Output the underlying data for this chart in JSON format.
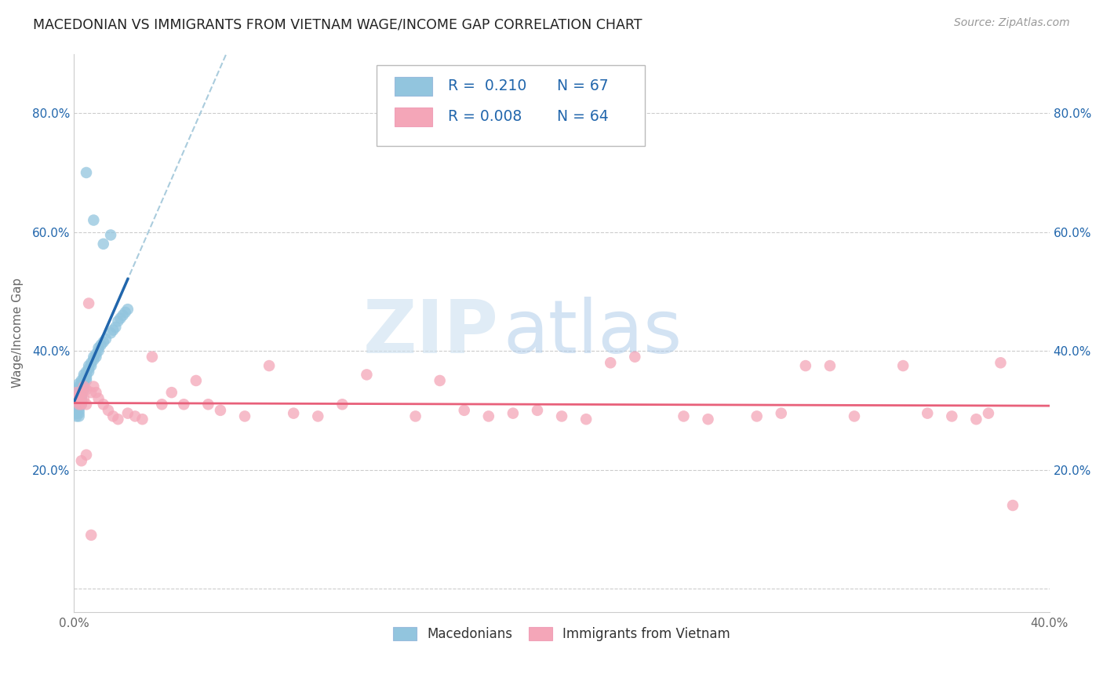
{
  "title": "MACEDONIAN VS IMMIGRANTS FROM VIETNAM WAGE/INCOME GAP CORRELATION CHART",
  "source": "Source: ZipAtlas.com",
  "ylabel": "Wage/Income Gap",
  "xlim": [
    0.0,
    0.4
  ],
  "ylim": [
    -0.04,
    0.9
  ],
  "xticks": [
    0.0,
    0.1,
    0.2,
    0.3,
    0.4
  ],
  "xtick_labels": [
    "0.0%",
    "",
    "",
    "",
    "40.0%"
  ],
  "yticks": [
    0.0,
    0.2,
    0.4,
    0.6,
    0.8
  ],
  "ytick_labels_left": [
    "",
    "20.0%",
    "40.0%",
    "60.0%",
    "80.0%"
  ],
  "ytick_labels_right": [
    "",
    "20.0%",
    "40.0%",
    "60.0%",
    "80.0%"
  ],
  "blue_color": "#92c5de",
  "pink_color": "#f4a6b8",
  "blue_line_color": "#2166ac",
  "pink_line_color": "#e8607a",
  "watermark_zip": "ZIP",
  "watermark_atlas": "atlas",
  "legend_r1": "R =  0.210",
  "legend_n1": "N = 67",
  "legend_r2": "R = 0.008",
  "legend_n2": "N = 64",
  "blue_label": "Macedonians",
  "pink_label": "Immigrants from Vietnam",
  "grid_color": "#cccccc",
  "mac_x": [
    0.001,
    0.001,
    0.001,
    0.001,
    0.001,
    0.001,
    0.001,
    0.001,
    0.001,
    0.001,
    0.002,
    0.002,
    0.002,
    0.002,
    0.002,
    0.002,
    0.002,
    0.002,
    0.002,
    0.002,
    0.002,
    0.002,
    0.003,
    0.003,
    0.003,
    0.003,
    0.003,
    0.003,
    0.003,
    0.003,
    0.003,
    0.004,
    0.004,
    0.004,
    0.004,
    0.004,
    0.004,
    0.005,
    0.005,
    0.005,
    0.005,
    0.006,
    0.006,
    0.006,
    0.007,
    0.007,
    0.008,
    0.008,
    0.009,
    0.009,
    0.01,
    0.01,
    0.011,
    0.012,
    0.013,
    0.015,
    0.016,
    0.017,
    0.018,
    0.019,
    0.02,
    0.021,
    0.022,
    0.015,
    0.012,
    0.008,
    0.005
  ],
  "mac_y": [
    0.335,
    0.325,
    0.32,
    0.315,
    0.31,
    0.305,
    0.3,
    0.295,
    0.295,
    0.29,
    0.345,
    0.34,
    0.335,
    0.33,
    0.325,
    0.32,
    0.315,
    0.31,
    0.305,
    0.3,
    0.295,
    0.29,
    0.35,
    0.345,
    0.34,
    0.335,
    0.33,
    0.325,
    0.32,
    0.315,
    0.31,
    0.36,
    0.355,
    0.35,
    0.345,
    0.34,
    0.335,
    0.365,
    0.36,
    0.355,
    0.35,
    0.375,
    0.37,
    0.365,
    0.38,
    0.375,
    0.39,
    0.385,
    0.395,
    0.39,
    0.405,
    0.4,
    0.41,
    0.415,
    0.42,
    0.43,
    0.435,
    0.44,
    0.45,
    0.455,
    0.46,
    0.465,
    0.47,
    0.595,
    0.58,
    0.62,
    0.7
  ],
  "viet_x": [
    0.001,
    0.001,
    0.002,
    0.002,
    0.002,
    0.003,
    0.003,
    0.003,
    0.004,
    0.004,
    0.005,
    0.005,
    0.006,
    0.007,
    0.008,
    0.009,
    0.01,
    0.012,
    0.014,
    0.016,
    0.018,
    0.022,
    0.025,
    0.028,
    0.032,
    0.036,
    0.04,
    0.045,
    0.05,
    0.055,
    0.06,
    0.07,
    0.08,
    0.09,
    0.1,
    0.11,
    0.12,
    0.14,
    0.15,
    0.16,
    0.17,
    0.18,
    0.19,
    0.2,
    0.21,
    0.22,
    0.23,
    0.25,
    0.26,
    0.28,
    0.29,
    0.3,
    0.31,
    0.32,
    0.34,
    0.35,
    0.36,
    0.37,
    0.375,
    0.38,
    0.385,
    0.003,
    0.005,
    0.007
  ],
  "viet_y": [
    0.33,
    0.315,
    0.325,
    0.32,
    0.31,
    0.33,
    0.32,
    0.31,
    0.34,
    0.32,
    0.335,
    0.31,
    0.48,
    0.33,
    0.34,
    0.33,
    0.32,
    0.31,
    0.3,
    0.29,
    0.285,
    0.295,
    0.29,
    0.285,
    0.39,
    0.31,
    0.33,
    0.31,
    0.35,
    0.31,
    0.3,
    0.29,
    0.375,
    0.295,
    0.29,
    0.31,
    0.36,
    0.29,
    0.35,
    0.3,
    0.29,
    0.295,
    0.3,
    0.29,
    0.285,
    0.38,
    0.39,
    0.29,
    0.285,
    0.29,
    0.295,
    0.375,
    0.375,
    0.29,
    0.375,
    0.295,
    0.29,
    0.285,
    0.295,
    0.38,
    0.14,
    0.215,
    0.225,
    0.09
  ]
}
